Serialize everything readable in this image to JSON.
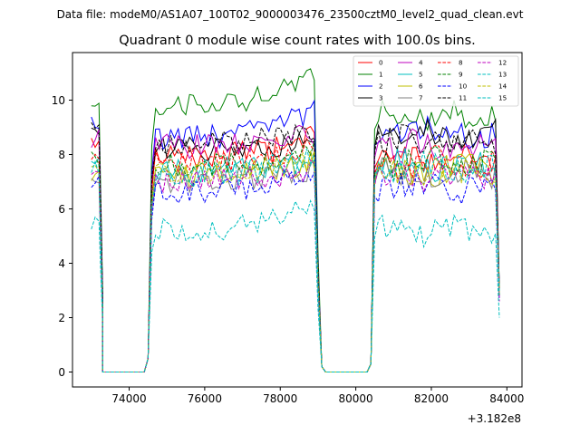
{
  "figure": {
    "suptitle": "Data file: modeM0/AS1A07_100T02_9000003476_23500cztM0_level2_quad_clean.evt"
  },
  "chart_data": {
    "type": "line",
    "title": "Quadrant 0 module wise count rates with 100.0s bins.",
    "xlabel": "",
    "ylabel": "",
    "x_offset_label": "+3.182e8",
    "xlim": [
      72500,
      84400
    ],
    "ylim": [
      -0.55,
      11.75
    ],
    "xticks": [
      74000,
      76000,
      78000,
      80000,
      82000,
      84000
    ],
    "xtick_labels": [
      "74000",
      "76000",
      "78000",
      "80000",
      "82000",
      "84000"
    ],
    "yticks": [
      0,
      2,
      4,
      6,
      8,
      10
    ],
    "ytick_labels": [
      "0",
      "2",
      "4",
      "6",
      "8",
      "10"
    ],
    "grid": false,
    "legend_position": "top-right",
    "legend_columns": 4,
    "segments": [
      {
        "start": 73000,
        "step": 100,
        "count": 4
      },
      {
        "start": 73300,
        "step": 100,
        "count": 12,
        "zero": true
      },
      {
        "start": 74500,
        "step": 100,
        "count": 47
      },
      {
        "start": 79200,
        "step": 100,
        "count": 12,
        "zero": true
      },
      {
        "start": 80400,
        "step": 100,
        "count": 35
      }
    ],
    "series": [
      {
        "name": "0",
        "color": "#ff0000",
        "dash": "solid",
        "level_a": 7.9,
        "level_b": 7.9,
        "start": 8.4,
        "edge": 8.8,
        "end": 3.0
      },
      {
        "name": "1",
        "color": "#008000",
        "dash": "solid",
        "level_a": 9.8,
        "level_b": 9.4,
        "start": 9.9,
        "edge": 11.2,
        "end": 3.0
      },
      {
        "name": "2",
        "color": "#0000ff",
        "dash": "solid",
        "level_a": 8.6,
        "level_b": 8.8,
        "start": 9.1,
        "edge": 9.9,
        "end": 3.0
      },
      {
        "name": "3",
        "color": "#000000",
        "dash": "solid",
        "level_a": 8.2,
        "level_b": 8.7,
        "start": 9.0,
        "edge": 8.6,
        "end": 3.0
      },
      {
        "name": "4",
        "color": "#bf00bf",
        "dash": "solid",
        "level_a": 8.3,
        "level_b": 8.3,
        "start": 8.6,
        "edge": 8.9,
        "end": 3.0
      },
      {
        "name": "5",
        "color": "#00bfbf",
        "dash": "solid",
        "level_a": 7.4,
        "level_b": 7.6,
        "start": 7.7,
        "edge": 8.1,
        "end": 3.0
      },
      {
        "name": "6",
        "color": "#bfbf00",
        "dash": "solid",
        "level_a": 7.2,
        "level_b": 7.4,
        "start": 7.3,
        "edge": 7.9,
        "end": 3.0
      },
      {
        "name": "7",
        "color": "#808080",
        "dash": "solid",
        "level_a": 7.0,
        "level_b": 7.3,
        "start": 7.0,
        "edge": 7.6,
        "end": 3.0
      },
      {
        "name": "8",
        "color": "#ff0000",
        "dash": "dashed",
        "level_a": 7.8,
        "level_b": 7.7,
        "start": 8.0,
        "edge": 8.4,
        "end": 2.8
      },
      {
        "name": "9",
        "color": "#008000",
        "dash": "dashed",
        "level_a": 7.6,
        "level_b": 7.7,
        "start": 7.9,
        "edge": 8.2,
        "end": 2.8
      },
      {
        "name": "10",
        "color": "#0000ff",
        "dash": "dashed",
        "level_a": 6.6,
        "level_b": 6.8,
        "start": 6.9,
        "edge": 7.5,
        "end": 2.6
      },
      {
        "name": "11",
        "color": "#000000",
        "dash": "dashed",
        "level_a": 8.4,
        "level_b": 8.5,
        "start": 8.9,
        "edge": 9.1,
        "end": 3.0
      },
      {
        "name": "12",
        "color": "#bf00bf",
        "dash": "dashed",
        "level_a": 7.0,
        "level_b": 7.2,
        "start": 7.3,
        "edge": 7.6,
        "end": 2.6
      },
      {
        "name": "13",
        "color": "#00bfbf",
        "dash": "dashed",
        "level_a": 5.2,
        "level_b": 5.2,
        "start": 5.6,
        "edge": 6.4,
        "end": 2.0
      },
      {
        "name": "14",
        "color": "#bfbf00",
        "dash": "dashed",
        "level_a": 7.3,
        "level_b": 7.4,
        "start": 7.5,
        "edge": 7.9,
        "end": 2.9
      },
      {
        "name": "15",
        "color": "#00bfbf",
        "dash": "dashed",
        "level_a": 7.2,
        "level_b": 7.5,
        "start": 7.6,
        "edge": 8.0,
        "end": 2.9
      }
    ]
  }
}
